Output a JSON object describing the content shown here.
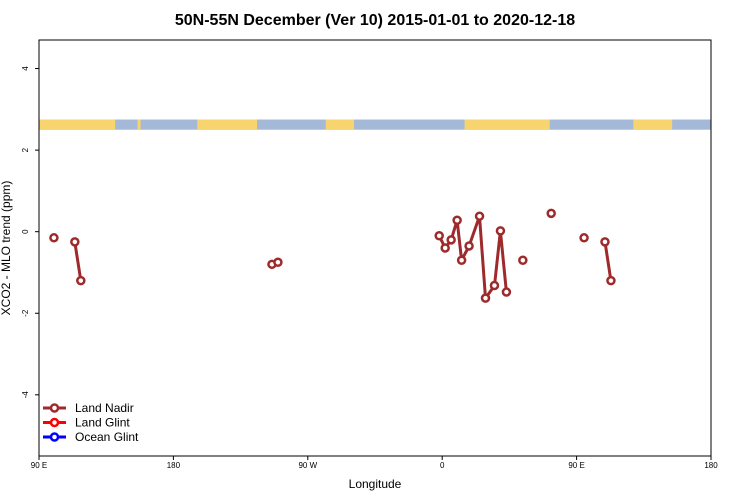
{
  "chart_data": {
    "type": "line",
    "title": "50N-55N December (Ver 10)   2015-01-01 to 2020-12-18",
    "xlabel": "Longitude",
    "ylabel": "XCO2 - MLO trend (ppm)",
    "xlim": [
      90,
      540
    ],
    "ylim": [
      -5.5,
      4.7
    ],
    "x_ticks": [
      {
        "value": 90,
        "label": "90 E"
      },
      {
        "value": 180,
        "label": "180"
      },
      {
        "value": 270,
        "label": "90 W"
      },
      {
        "value": 360,
        "label": "0"
      },
      {
        "value": 450,
        "label": "90 E"
      },
      {
        "value": 540,
        "label": "180"
      }
    ],
    "y_ticks": [
      {
        "value": -4,
        "label": "-4"
      },
      {
        "value": -2,
        "label": "-2"
      },
      {
        "value": 0,
        "label": "0"
      },
      {
        "value": 2,
        "label": "2"
      },
      {
        "value": 4,
        "label": "4"
      }
    ],
    "land_ocean_band": {
      "y_range": [
        2.5,
        2.75
      ],
      "land_color": "#f8d46e",
      "ocean_color": "#a4b8d8",
      "land_segments": [
        [
          90,
          141
        ],
        [
          156,
          158
        ],
        [
          196,
          236
        ],
        [
          282,
          301
        ],
        [
          375,
          432
        ],
        [
          488,
          514
        ]
      ]
    },
    "series": [
      {
        "name": "Land Nadir",
        "color": "#9e2a2b",
        "segments": [
          [
            [
              100,
              -0.15
            ]
          ],
          [
            [
              114,
              -0.25
            ],
            [
              118,
              -1.2
            ]
          ],
          [
            [
              246,
              -0.8
            ],
            [
              250,
              -0.75
            ]
          ],
          [
            [
              358,
              -0.1
            ],
            [
              362,
              -0.4
            ],
            [
              366,
              -0.2
            ],
            [
              370,
              0.28
            ],
            [
              373,
              -0.7
            ],
            [
              378,
              -0.35
            ],
            [
              385,
              0.38
            ],
            [
              389,
              -1.63
            ],
            [
              395,
              -1.32
            ],
            [
              399,
              0.02
            ],
            [
              403,
              -1.48
            ]
          ],
          [
            [
              414,
              -0.7
            ]
          ],
          [
            [
              433,
              0.45
            ]
          ],
          [
            [
              455,
              -0.15
            ]
          ],
          [
            [
              469,
              -0.25
            ],
            [
              473,
              -1.2
            ]
          ]
        ]
      },
      {
        "name": "Land Glint",
        "color": "#ff0000",
        "segments": []
      },
      {
        "name": "Ocean Glint",
        "color": "#0000ff",
        "segments": []
      }
    ],
    "legend_position": "bottom-left"
  }
}
